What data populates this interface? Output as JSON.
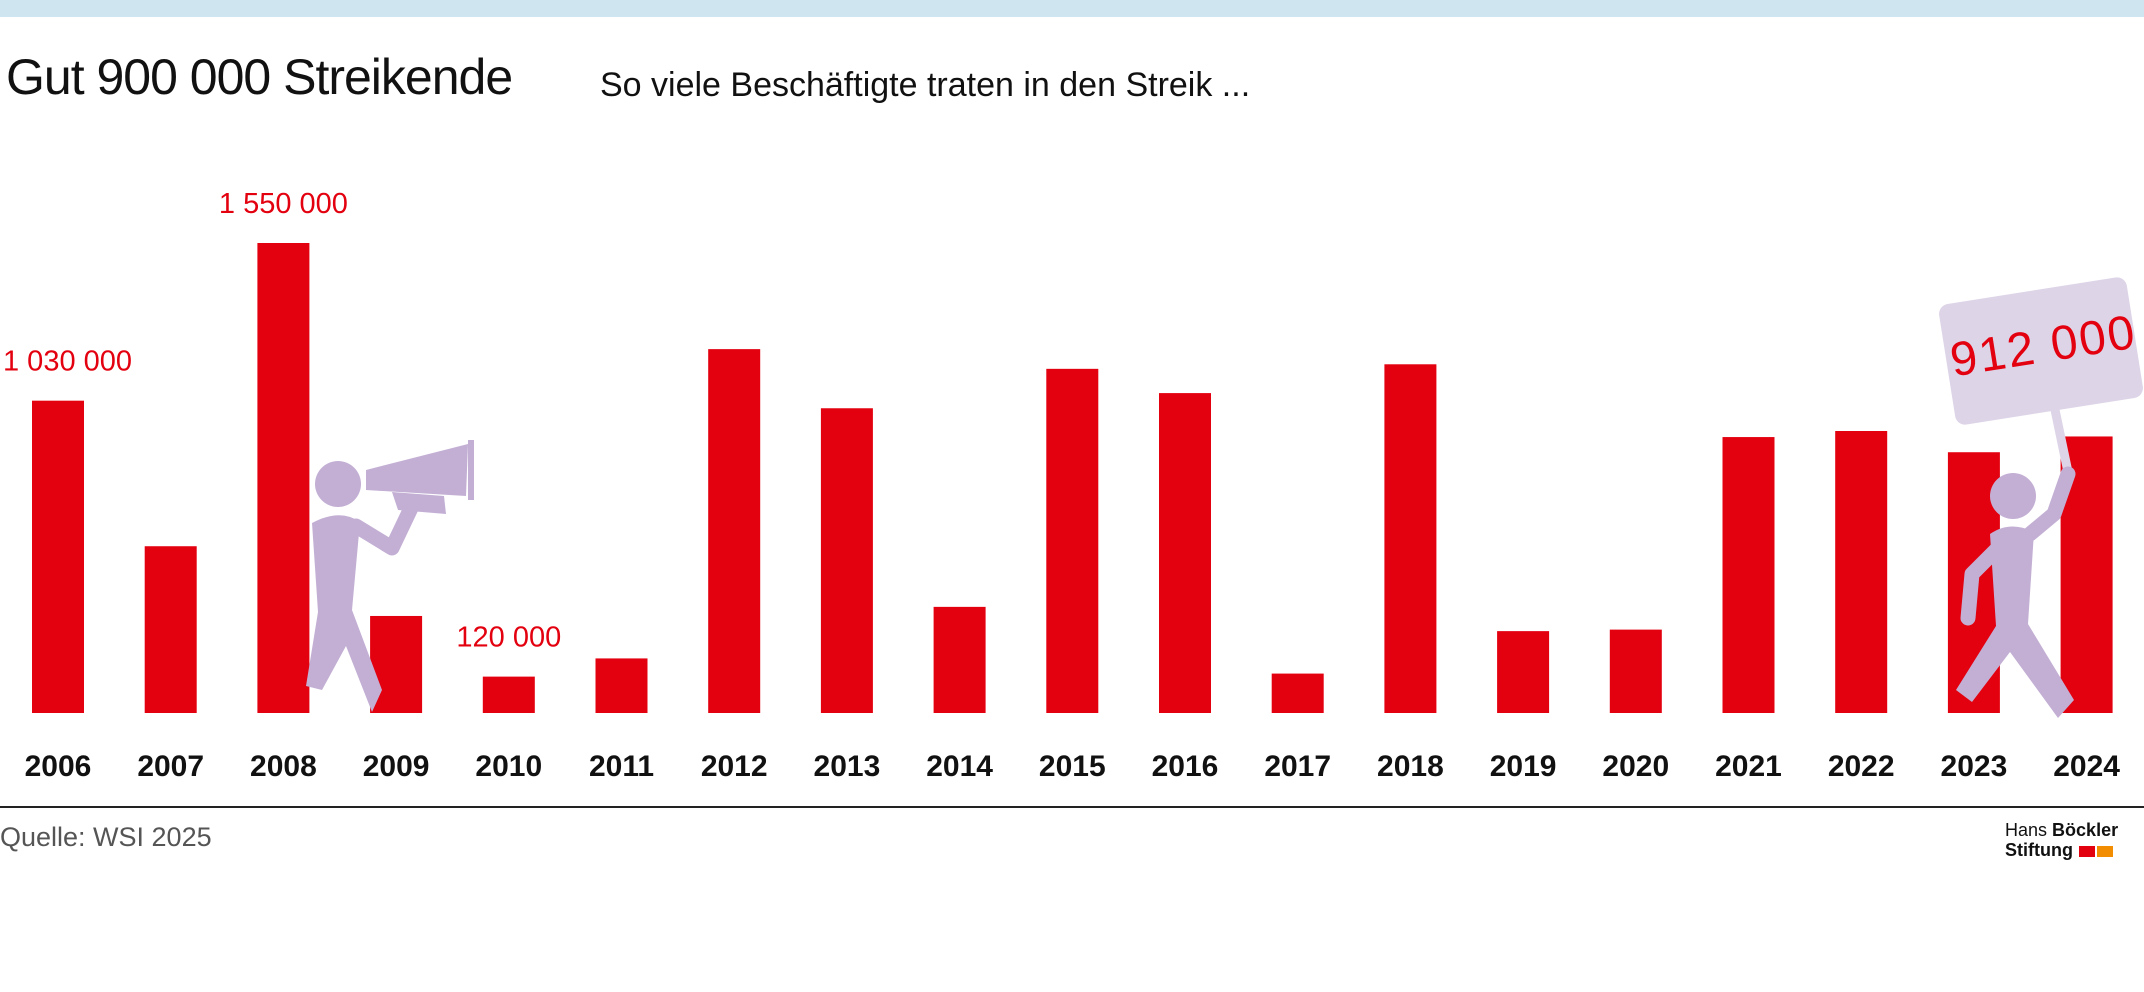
{
  "header": {
    "title": "Gut 900 000 Streikende",
    "subtitle": "So viele Beschäftigte traten in den Streik ..."
  },
  "footer": {
    "source": "Quelle: WSI 2025",
    "logo_line1_regular": "Hans",
    "logo_line1_bold": "Böckler",
    "logo_line2": "Stiftung"
  },
  "colors": {
    "bar": "#e3000f",
    "figure": "#c3afd4",
    "sign": "#ddd4e7",
    "topbar": "#cfe6f0",
    "logo_red": "#e3000f",
    "logo_orange": "#f28c00"
  },
  "icons": [
    "megaphone-person-icon",
    "sign-holding-person-icon"
  ],
  "chart_data": {
    "type": "bar",
    "categories": [
      "2006",
      "2007",
      "2008",
      "2009",
      "2010",
      "2011",
      "2012",
      "2013",
      "2014",
      "2015",
      "2016",
      "2017",
      "2018",
      "2019",
      "2020",
      "2021",
      "2022",
      "2023",
      "2024"
    ],
    "values": [
      1030000,
      550000,
      1550000,
      320000,
      120000,
      180000,
      1200000,
      1005000,
      350000,
      1135000,
      1055000,
      130000,
      1150000,
      270000,
      275000,
      910000,
      930000,
      860000,
      912000
    ],
    "data_labels": {
      "2006": "1 030 000",
      "2008": "1 550 000",
      "2010": "120 000",
      "2024": "912 000"
    },
    "ylim": [
      0,
      1550000
    ],
    "grid": false,
    "legend": "none"
  }
}
